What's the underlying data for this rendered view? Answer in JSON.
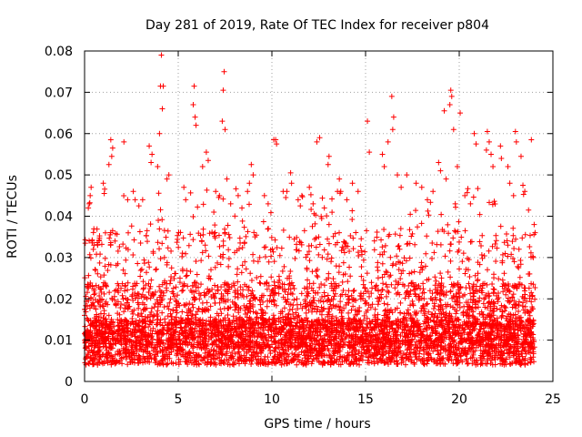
{
  "chart_data": {
    "type": "scatter",
    "title": "Day 281 of 2019, Rate Of TEC Index for receiver p804",
    "xlabel": "GPS time / hours",
    "ylabel": "ROTI / TECUs",
    "xlim": [
      0,
      25
    ],
    "ylim": [
      0,
      0.08
    ],
    "xticks": [
      0,
      5,
      10,
      15,
      20,
      25
    ],
    "yticks": [
      0,
      0.01,
      0.02,
      0.03,
      0.04,
      0.05,
      0.06,
      0.07,
      0.08
    ],
    "xtick_labels": [
      "0",
      "5",
      "10",
      "15",
      "20",
      "25"
    ],
    "ytick_labels": [
      "0",
      "0.01",
      "0.02",
      "0.03",
      "0.04",
      "0.05",
      "0.06",
      "0.07",
      "0.08"
    ],
    "grid": true,
    "marker": "+",
    "color": "#ff0000",
    "series": [
      {
        "name": "ROTI",
        "points": [
          [
            4.1,
            0.079
          ],
          [
            4.05,
            0.0715
          ],
          [
            4.2,
            0.0715
          ],
          [
            4.15,
            0.066
          ],
          [
            4.0,
            0.06
          ],
          [
            5.85,
            0.0715
          ],
          [
            5.8,
            0.067
          ],
          [
            5.9,
            0.064
          ],
          [
            5.95,
            0.062
          ],
          [
            7.45,
            0.075
          ],
          [
            7.4,
            0.0705
          ],
          [
            7.35,
            0.063
          ],
          [
            7.5,
            0.061
          ],
          [
            16.4,
            0.069
          ],
          [
            16.5,
            0.064
          ],
          [
            16.45,
            0.061
          ],
          [
            16.2,
            0.058
          ],
          [
            19.55,
            0.0705
          ],
          [
            19.6,
            0.069
          ],
          [
            19.5,
            0.067
          ],
          [
            19.2,
            0.0655
          ],
          [
            19.7,
            0.061
          ],
          [
            20.05,
            0.065
          ],
          [
            15.1,
            0.063
          ],
          [
            15.2,
            0.0555
          ],
          [
            10.2,
            0.0585
          ],
          [
            10.25,
            0.0575
          ],
          [
            10.1,
            0.0585
          ],
          [
            12.55,
            0.059
          ],
          [
            12.4,
            0.058
          ],
          [
            13.05,
            0.0545
          ],
          [
            13.0,
            0.0525
          ],
          [
            1.4,
            0.0585
          ],
          [
            1.5,
            0.0565
          ],
          [
            1.45,
            0.0545
          ],
          [
            1.3,
            0.0525
          ],
          [
            2.1,
            0.058
          ],
          [
            23.85,
            0.0585
          ],
          [
            23.0,
            0.0605
          ],
          [
            23.05,
            0.058
          ],
          [
            23.3,
            0.0545
          ],
          [
            22.6,
            0.052
          ],
          [
            21.5,
            0.0605
          ],
          [
            21.6,
            0.058
          ],
          [
            21.45,
            0.056
          ],
          [
            21.7,
            0.055
          ],
          [
            21.8,
            0.052
          ],
          [
            20.8,
            0.06
          ],
          [
            20.9,
            0.0575
          ],
          [
            22.2,
            0.057
          ],
          [
            22.25,
            0.054
          ],
          [
            3.45,
            0.057
          ],
          [
            3.6,
            0.055
          ],
          [
            3.55,
            0.053
          ],
          [
            3.9,
            0.052
          ],
          [
            4.5,
            0.05
          ],
          [
            4.4,
            0.049
          ],
          [
            6.5,
            0.0555
          ],
          [
            6.3,
            0.052
          ],
          [
            6.6,
            0.0535
          ],
          [
            8.9,
            0.0525
          ],
          [
            9.0,
            0.05
          ],
          [
            8.7,
            0.046
          ],
          [
            8.8,
            0.048
          ],
          [
            9.6,
            0.045
          ],
          [
            9.8,
            0.043
          ],
          [
            11.0,
            0.0505
          ],
          [
            11.05,
            0.048
          ],
          [
            10.8,
            0.046
          ],
          [
            11.4,
            0.044
          ],
          [
            11.6,
            0.045
          ],
          [
            13.6,
            0.049
          ],
          [
            13.5,
            0.046
          ],
          [
            14.0,
            0.044
          ],
          [
            14.3,
            0.048
          ],
          [
            14.6,
            0.046
          ],
          [
            15.9,
            0.055
          ],
          [
            16.0,
            0.052
          ],
          [
            16.7,
            0.05
          ],
          [
            16.9,
            0.047
          ],
          [
            17.2,
            0.05
          ],
          [
            17.7,
            0.048
          ],
          [
            18.0,
            0.047
          ],
          [
            18.3,
            0.044
          ],
          [
            18.6,
            0.046
          ],
          [
            18.9,
            0.053
          ],
          [
            19.0,
            0.051
          ],
          [
            19.3,
            0.049
          ],
          [
            19.9,
            0.052
          ],
          [
            20.3,
            0.045
          ],
          [
            20.6,
            0.043
          ],
          [
            22.7,
            0.048
          ],
          [
            22.9,
            0.045
          ],
          [
            23.4,
            0.0475
          ],
          [
            23.5,
            0.046
          ],
          [
            23.7,
            0.0415
          ],
          [
            0.35,
            0.047
          ],
          [
            0.3,
            0.045
          ],
          [
            0.25,
            0.043
          ],
          [
            0.2,
            0.042
          ],
          [
            1.0,
            0.048
          ],
          [
            1.05,
            0.0455
          ],
          [
            2.6,
            0.046
          ],
          [
            2.7,
            0.044
          ],
          [
            2.9,
            0.0425
          ],
          [
            3.1,
            0.044
          ],
          [
            5.3,
            0.047
          ],
          [
            5.4,
            0.044
          ],
          [
            7.0,
            0.046
          ],
          [
            7.2,
            0.045
          ],
          [
            7.6,
            0.049
          ],
          [
            7.8,
            0.043
          ],
          [
            8.2,
            0.045
          ],
          [
            8.4,
            0.042
          ],
          [
            12.0,
            0.047
          ],
          [
            12.2,
            0.043
          ],
          [
            12.8,
            0.042
          ],
          [
            6.9,
            0.041
          ],
          [
            2.3,
            0.044
          ],
          [
            10.6,
            0.046
          ],
          [
            0.4,
            0.034
          ],
          [
            0.5,
            0.033
          ],
          [
            24.0,
            0.038
          ],
          [
            24.05,
            0.036
          ],
          [
            23.95,
            0.03
          ],
          [
            0.0,
            0.016
          ]
        ]
      }
    ]
  }
}
